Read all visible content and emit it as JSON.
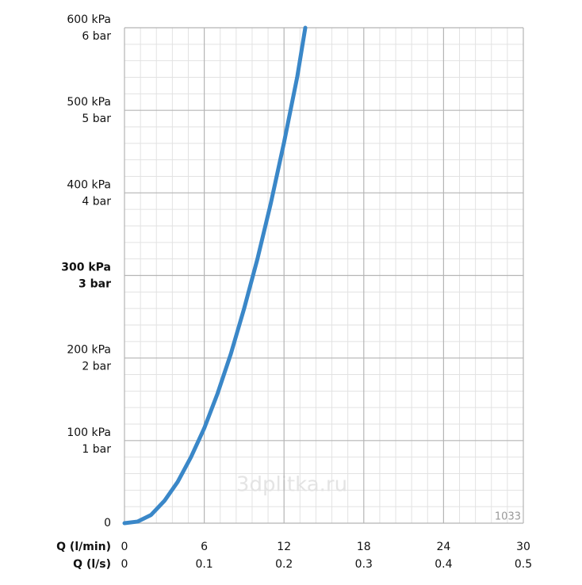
{
  "chart_data": {
    "type": "line",
    "xlabel": "Q (l/min)",
    "x2label": "Q (l/s)",
    "xlim": [
      0,
      30
    ],
    "xticks": [
      0,
      6,
      12,
      18,
      24,
      30
    ],
    "x2lim": [
      0,
      0.5
    ],
    "x2ticks": [
      0,
      0.1,
      0.2,
      0.3,
      0.4,
      0.5
    ],
    "ylim": [
      0,
      600
    ],
    "yticks": [
      0,
      {
        "value": 100,
        "label": "100 kPa"
      },
      {
        "value": 200,
        "label": "200 kPa"
      },
      {
        "value": 300,
        "label": "300 kPa"
      },
      {
        "value": 400,
        "label": "400 kPa"
      },
      {
        "value": 500,
        "label": "500 kPa"
      },
      {
        "value": 600,
        "label": "600 kPa"
      }
    ],
    "ytick_bar_labels": [
      null,
      "1 bar",
      "2 bar",
      "3 bar",
      "4 bar",
      "5 bar",
      "6 bar"
    ],
    "bold_ytick_value": 300,
    "grid": true,
    "minor_grid_divisions": 5,
    "series": [
      {
        "name": null,
        "color": "#3a87c8",
        "x": [
          0,
          1,
          2,
          3,
          4,
          5,
          6,
          7,
          8,
          9,
          10,
          11,
          12,
          13,
          13.6
        ],
        "values": [
          0,
          2,
          10,
          27,
          50,
          80,
          115,
          157,
          205,
          260,
          320,
          387,
          461,
          541,
          600
        ]
      }
    ],
    "annotations": [
      "1033",
      "3dplitka.ru"
    ]
  }
}
